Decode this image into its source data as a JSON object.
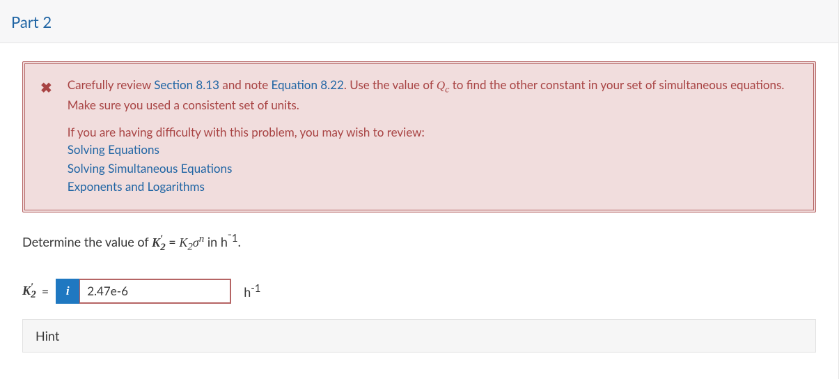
{
  "part": {
    "title": "Part 2"
  },
  "feedback": {
    "body_pre": "Carefully review ",
    "link1": "Section 8.13",
    "body_mid1": " and note ",
    "link2": "Equation 8.22",
    "body_mid2": ". Use the value of ",
    "qc_base": "Q",
    "qc_sub": "c",
    "body_post": " to find the other constant in your set of simultaneous equations. Make sure you used a consistent set of units.",
    "help_intro": "If you are having difficulty with this problem, you may wish to review:",
    "help_links": [
      "Solving Equations",
      "Solving Simultaneous Equations",
      "Exponents and Logarithms"
    ],
    "colors": {
      "border": "#b56464",
      "background": "#f1dddd",
      "text": "#a84343",
      "link": "#2065a4"
    }
  },
  "prompt": {
    "pre": "Determine the value of ",
    "k_base": "K",
    "k_sub": "2",
    "sup_prime": "′",
    "eq": " = ",
    "rhs_k": "K",
    "rhs_sub": "2",
    "sigma": "σ",
    "rhs_sup": "n",
    "in_text": " in ",
    "unit_base": "h",
    "unit_sup": "ˉ1",
    "period": "."
  },
  "answer": {
    "label_base": "K",
    "label_sub": "2",
    "label_sup": "′",
    "eq": "=",
    "info": "i",
    "value": "2.47e-6",
    "unit_base": "h",
    "unit_sup": "-1",
    "colors": {
      "info_bg": "#1f78c1",
      "input_border": "#b56464"
    }
  },
  "hint": {
    "label": "Hint"
  }
}
